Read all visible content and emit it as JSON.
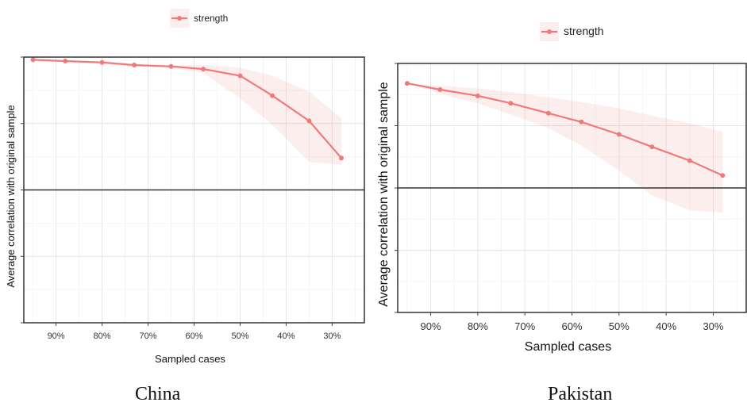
{
  "chart_data": [
    {
      "type": "line",
      "caption": "China",
      "xlabel": "Sampled cases",
      "ylabel": "Average correlation with original sample",
      "legend": {
        "position": "top",
        "entries": [
          "strength"
        ]
      },
      "grid": true,
      "x_ticks": [
        "90%",
        "80%",
        "70%",
        "60%",
        "50%",
        "40%",
        "30%"
      ],
      "x_tick_values": [
        90,
        80,
        70,
        60,
        50,
        40,
        30
      ],
      "xlim": [
        97,
        23
      ],
      "ylim": [
        -1,
        1
      ],
      "reference_line_y": 0,
      "series": [
        {
          "name": "strength",
          "color": "#f07a7a",
          "x": [
            95,
            88,
            80,
            73,
            65,
            58,
            50,
            43,
            35,
            28
          ],
          "y": [
            0.98,
            0.97,
            0.96,
            0.94,
            0.93,
            0.91,
            0.86,
            0.71,
            0.52,
            0.24
          ],
          "ci_low": [
            0.98,
            0.96,
            0.95,
            0.93,
            0.92,
            0.88,
            0.69,
            0.49,
            0.21,
            0.19
          ],
          "ci_high": [
            0.98,
            0.97,
            0.97,
            0.95,
            0.94,
            0.94,
            0.92,
            0.86,
            0.74,
            0.54
          ]
        }
      ]
    },
    {
      "type": "line",
      "caption": "Pakistan",
      "xlabel": "Sampled cases",
      "ylabel": "Average correlation with original sample",
      "legend": {
        "position": "top",
        "entries": [
          "strength"
        ]
      },
      "grid": true,
      "x_ticks": [
        "90%",
        "80%",
        "70%",
        "60%",
        "50%",
        "40%",
        "30%"
      ],
      "x_tick_values": [
        90,
        80,
        70,
        60,
        50,
        40,
        30
      ],
      "xlim": [
        97,
        23
      ],
      "ylim": [
        -1,
        1
      ],
      "reference_line_y": 0,
      "series": [
        {
          "name": "strength",
          "color": "#f07a7a",
          "x": [
            95,
            88,
            80,
            73,
            65,
            58,
            50,
            43,
            35,
            28
          ],
          "y": [
            0.84,
            0.79,
            0.74,
            0.68,
            0.6,
            0.53,
            0.43,
            0.33,
            0.22,
            0.1
          ],
          "ci_low": [
            0.84,
            0.76,
            0.68,
            0.59,
            0.48,
            0.34,
            0.14,
            -0.06,
            -0.18,
            -0.2
          ],
          "ci_high": [
            0.84,
            0.82,
            0.8,
            0.77,
            0.73,
            0.69,
            0.64,
            0.58,
            0.52,
            0.45
          ]
        }
      ]
    }
  ]
}
